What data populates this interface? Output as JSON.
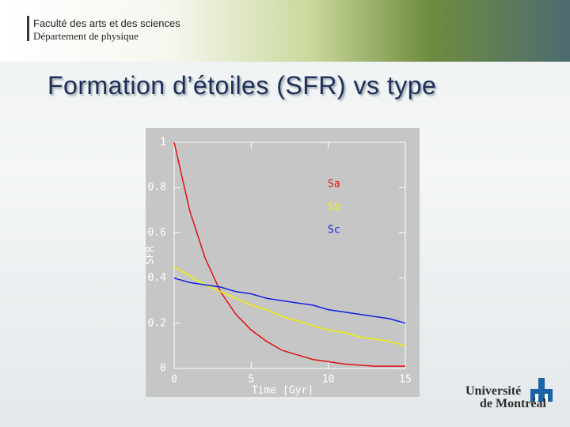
{
  "slide": {
    "faculty": "Faculté des arts et des sciences",
    "department": "Département de physique",
    "title": "Formation d’étoiles (SFR) vs type"
  },
  "logo": {
    "line1": "Université",
    "line2": "de Montréal"
  },
  "chart_data": {
    "type": "line",
    "x_label": "Time [Gyr]",
    "y_label": "SFR",
    "x": [
      0,
      1,
      2,
      3,
      4,
      5,
      6,
      7,
      8,
      9,
      10,
      11,
      12,
      13,
      14,
      15
    ],
    "series": [
      {
        "name": "Sa",
        "color": "#e01010",
        "values": [
          1,
          0.7,
          0.49,
          0.34,
          0.24,
          0.17,
          0.12,
          0.08,
          0.06,
          0.04,
          0.03,
          0.02,
          0.015,
          0.01,
          0.01,
          0.01
        ]
      },
      {
        "name": "Sb",
        "color": "#f0f000",
        "values": [
          0.45,
          0.41,
          0.37,
          0.34,
          0.31,
          0.28,
          0.26,
          0.23,
          0.21,
          0.19,
          0.17,
          0.16,
          0.14,
          0.13,
          0.12,
          0.1
        ]
      },
      {
        "name": "Sc",
        "color": "#1020e0",
        "values": [
          0.4,
          0.38,
          0.37,
          0.36,
          0.34,
          0.33,
          0.31,
          0.3,
          0.29,
          0.28,
          0.26,
          0.25,
          0.24,
          0.23,
          0.22,
          0.2
        ]
      }
    ],
    "xlim": [
      0,
      15
    ],
    "xticks": [
      0,
      5,
      10,
      15
    ],
    "ylim": [
      0,
      1
    ],
    "yticks": [
      0,
      0.2,
      0.4,
      0.6,
      0.8,
      1
    ]
  }
}
